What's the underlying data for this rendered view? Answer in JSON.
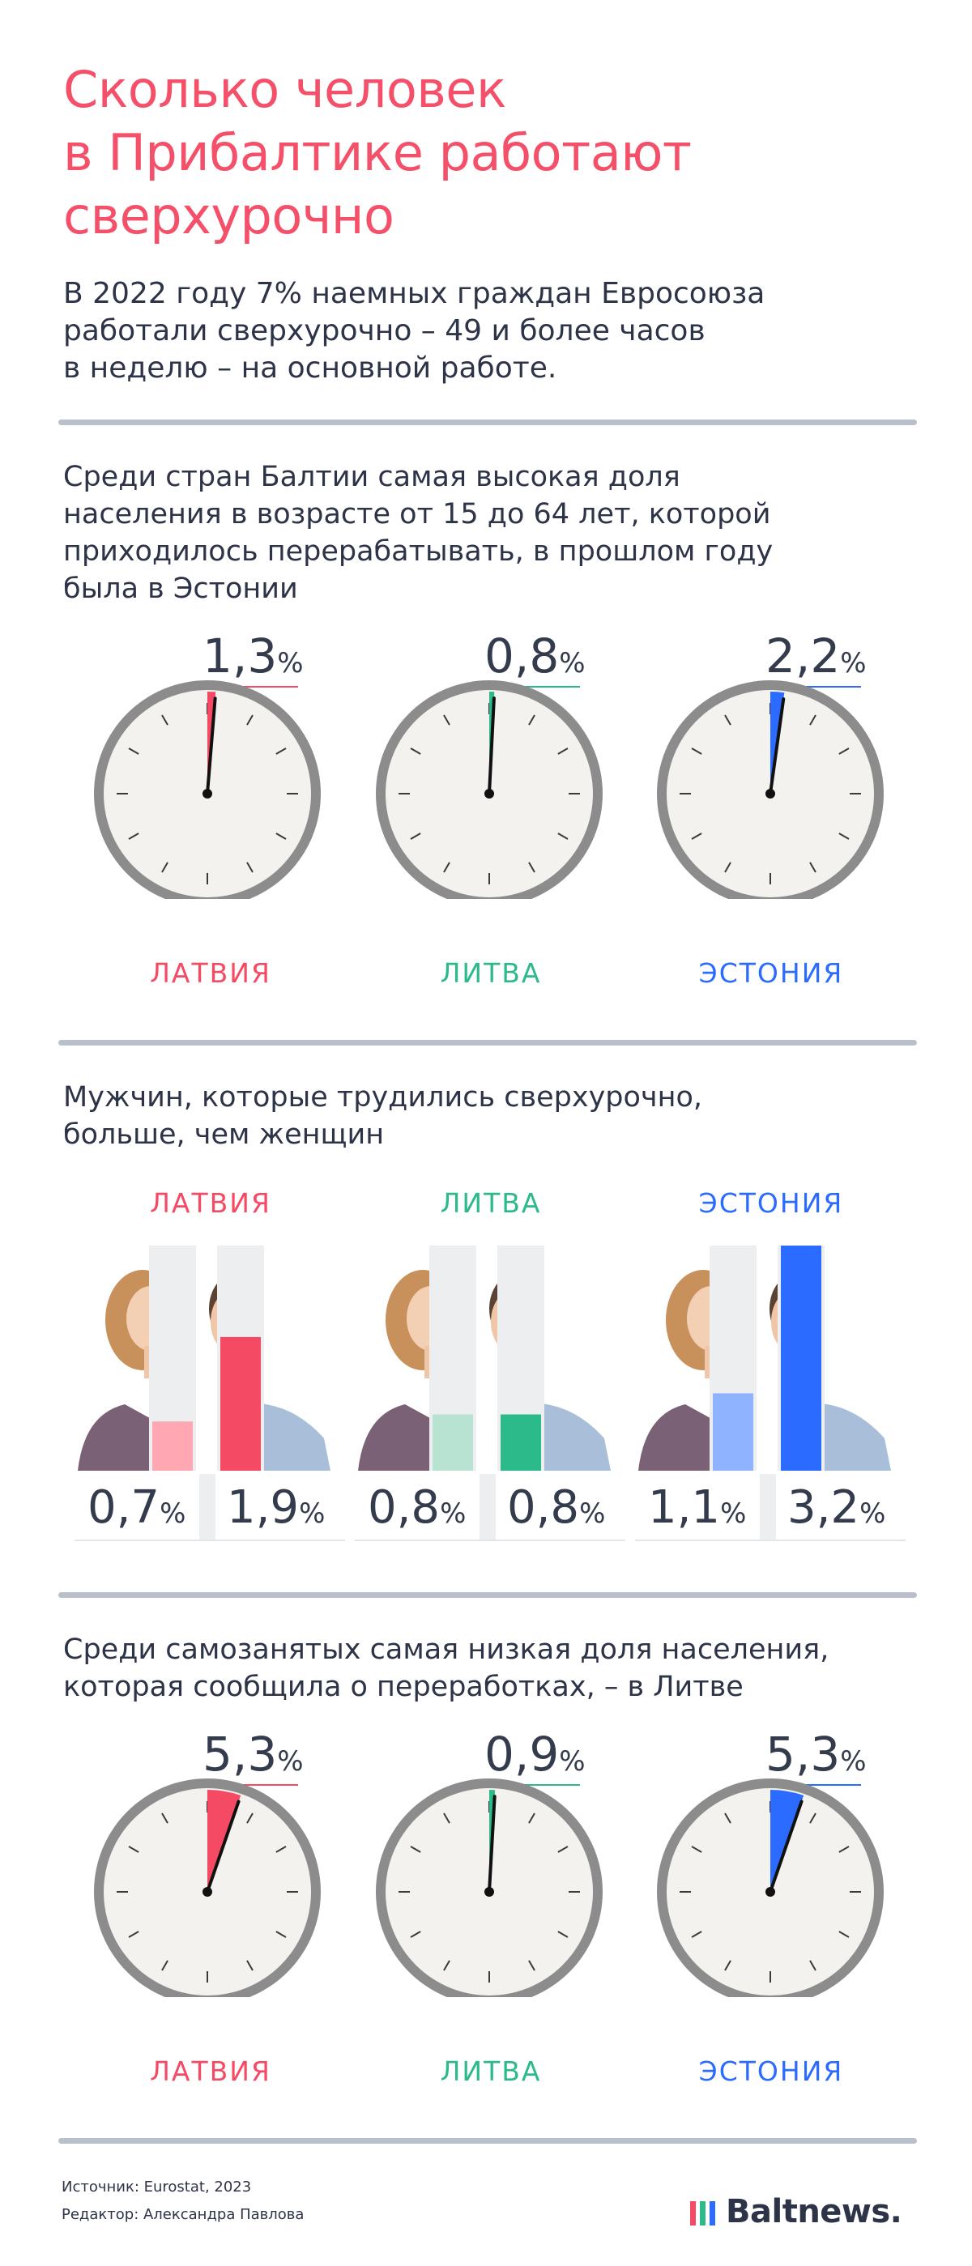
{
  "header": {
    "title_lines": [
      "Сколько человек",
      "в Прибалтике работают",
      "сверхурочно"
    ],
    "lead_lines": [
      "В 2022 году 7% наемных граждан Евросоюза",
      "работали сверхурочно – 49 и более часов",
      "в неделю – на основной работе."
    ]
  },
  "sections": {
    "s1": {
      "title_lines": [
        "Среди стран Балтии самая высокая доля",
        "населения в возрасте от 15 до 64 лет, которой",
        "приходилось перерабатывать, в прошлом году",
        "была в Эстонии"
      ]
    },
    "s2": {
      "title_lines": [
        "Мужчин, которые трудились сверхурочно,",
        "больше, чем женщин"
      ]
    },
    "s3": {
      "title_lines": [
        "Среди самозанятых самая низкая доля населения,",
        "которая сообщила о переработках, – в Литве"
      ]
    }
  },
  "countries": {
    "latvia": "ЛАТВИЯ",
    "lithuania": "ЛИТВА",
    "estonia": "ЭСТОНИЯ"
  },
  "percent_sign": "%",
  "colors": {
    "latvia": "#f54a63",
    "lithuania": "#2dba8b",
    "estonia": "#2b6bff",
    "title": "#f5506a",
    "text": "#2e3447"
  },
  "chart_data": [
    {
      "type": "pie",
      "title": "Среди стран Балтии самая высокая доля населения в возрасте от 15 до 64 лет, которой приходилось перерабатывать, в прошлом году была в Эстонии",
      "categories": [
        "ЛАТВИЯ",
        "ЛИТВА",
        "ЭСТОНИЯ"
      ],
      "values": [
        1.3,
        0.8,
        2.2
      ],
      "value_labels": [
        "1,3",
        "0,8",
        "2,2"
      ],
      "unit": "%"
    },
    {
      "type": "bar",
      "title": "Мужчин, которые трудились сверхурочно, больше, чем женщин",
      "categories": [
        "ЛАТВИЯ",
        "ЛИТВА",
        "ЭСТОНИЯ"
      ],
      "series": [
        {
          "values": [
            0.7,
            0.8,
            1.1
          ],
          "value_labels": [
            "0,7",
            "0,8",
            "1,1"
          ]
        },
        {
          "values": [
            1.9,
            0.8,
            3.2
          ],
          "value_labels": [
            "1,9",
            "0,8",
            "3,2"
          ]
        }
      ],
      "unit": "%",
      "ylim": [
        0,
        3.2
      ]
    },
    {
      "type": "pie",
      "title": "Среди самозанятых самая низкая доля населения, которая сообщила о переработках, – в Литве",
      "categories": [
        "ЛАТВИЯ",
        "ЛИТВА",
        "ЭСТОНИЯ"
      ],
      "values": [
        5.3,
        0.9,
        5.3
      ],
      "value_labels": [
        "5,3",
        "0,9",
        "5,3"
      ],
      "unit": "%"
    }
  ],
  "footer": {
    "source": "Источник: Eurostat, 2023",
    "editor": "Редактор: Александра Павлова",
    "brand": "Baltnews."
  }
}
